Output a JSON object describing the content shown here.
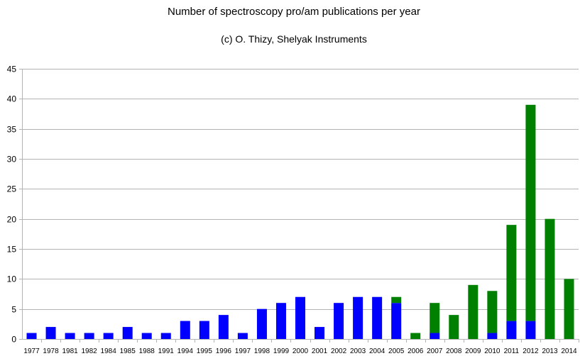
{
  "chart_data": {
    "type": "bar",
    "stacked": true,
    "title": "Number of spectroscopy pro/am publications per year",
    "subtitle": "(c) O. Thizy, Shelyak Instruments",
    "xlabel": "",
    "ylabel": "",
    "ylim": [
      0,
      45
    ],
    "yticks": [
      0,
      5,
      10,
      15,
      20,
      25,
      30,
      35,
      40,
      45
    ],
    "grid": true,
    "legend": "none",
    "categories": [
      "1977",
      "1978",
      "1981",
      "1982",
      "1984",
      "1985",
      "1988",
      "1991",
      "1994",
      "1995",
      "1996",
      "1997",
      "1998",
      "1999",
      "2000",
      "2001",
      "2002",
      "2003",
      "2004",
      "2005",
      "2006",
      "2007",
      "2008",
      "2009",
      "2010",
      "2011",
      "2012",
      "2013",
      "2014"
    ],
    "series": [
      {
        "color": "#0000ff",
        "values": [
          1,
          2,
          1,
          1,
          1,
          2,
          1,
          1,
          3,
          3,
          4,
          1,
          5,
          6,
          7,
          2,
          6,
          7,
          7,
          6,
          0,
          1,
          0,
          0,
          1,
          3,
          3,
          0,
          0
        ]
      },
      {
        "color": "#008000",
        "values": [
          0,
          0,
          0,
          0,
          0,
          0,
          0,
          0,
          0,
          0,
          0,
          0,
          0,
          0,
          0,
          0,
          0,
          0,
          0,
          1,
          1,
          5,
          4,
          9,
          7,
          16,
          36,
          20,
          10
        ]
      }
    ]
  }
}
